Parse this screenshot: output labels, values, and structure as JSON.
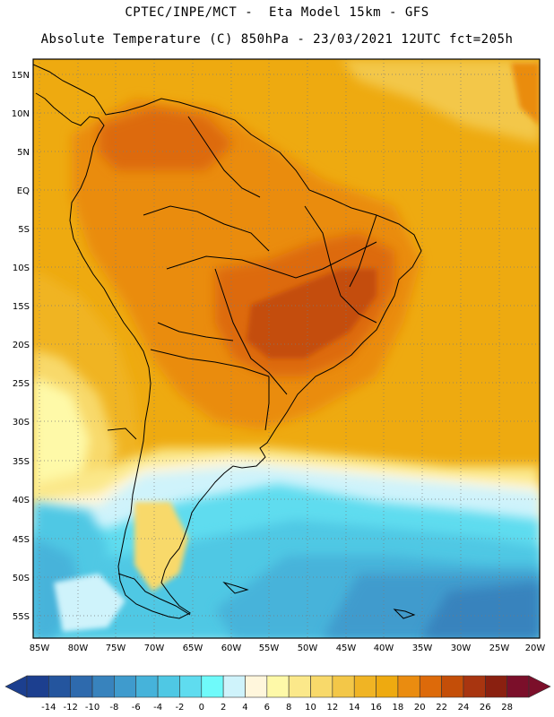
{
  "header": {
    "line1": "CPTEC/INPE/MCT -  Eta Model 15km - GFS",
    "line2": "Absolute Temperature (C) 850hPa - 23/03/2021 12UTC fct=205h"
  },
  "axes": {
    "lat_labels": [
      "15N",
      "10N",
      "5N",
      "EQ",
      "5S",
      "10S",
      "15S",
      "20S",
      "25S",
      "30S",
      "35S",
      "40S",
      "45S",
      "50S",
      "55S"
    ],
    "lon_labels": [
      "85W",
      "80W",
      "75W",
      "70W",
      "65W",
      "60W",
      "55W",
      "50W",
      "45W",
      "40W",
      "35W",
      "30W",
      "25W",
      "20W"
    ]
  },
  "legend": {
    "labels": [
      "-14",
      "-12",
      "-10",
      "-8",
      "-6",
      "-4",
      "-2",
      "0",
      "2",
      "4",
      "6",
      "8",
      "10",
      "12",
      "14",
      "16",
      "18",
      "20",
      "22",
      "24",
      "26",
      "28"
    ],
    "colors": [
      "#1c3f8f",
      "#24559e",
      "#2e6aad",
      "#3883bd",
      "#3f9bcd",
      "#46b3da",
      "#4fc8e4",
      "#5fdcef",
      "#6ffafa",
      "#cff3fb",
      "#fff6dc",
      "#fef9a8",
      "#fbe88a",
      "#f8d96a",
      "#f3c748",
      "#f0b424",
      "#eeaa10",
      "#ea8c10",
      "#dd6a0a",
      "#c44e08",
      "#a83510",
      "#8a2010",
      "#7b0f2a"
    ]
  },
  "map": {
    "region": "South America",
    "variable": "Absolute Temperature (C) 850hPa",
    "hot_core": "Central Brazil, 22-24 C",
    "cold_south": "Southern ocean, -8 to -2 C"
  }
}
